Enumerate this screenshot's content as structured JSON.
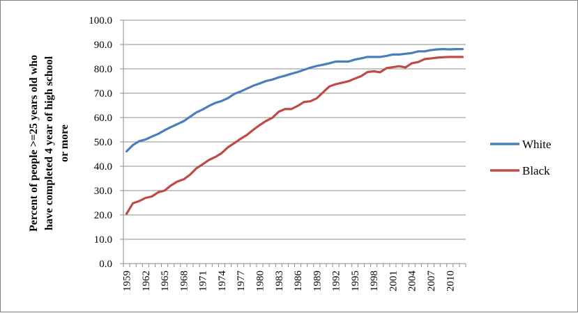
{
  "chart_data": {
    "type": "line",
    "title": "",
    "xlabel": "",
    "ylabel": "Percent of people >=25 years old who have completed 4 year of high school or more",
    "ylabel_lines": [
      "Percent of people >=25 years old who",
      "have completed 4 year of high school",
      "or more"
    ],
    "ylim": [
      0,
      100
    ],
    "yticks": [
      "0.0",
      "10.0",
      "20.0",
      "30.0",
      "40.0",
      "50.0",
      "60.0",
      "70.0",
      "80.0",
      "90.0",
      "100.0"
    ],
    "x": [
      1959,
      1960,
      1961,
      1962,
      1963,
      1964,
      1965,
      1966,
      1967,
      1968,
      1969,
      1970,
      1971,
      1972,
      1973,
      1974,
      1975,
      1976,
      1977,
      1978,
      1979,
      1980,
      1981,
      1982,
      1983,
      1984,
      1985,
      1986,
      1987,
      1988,
      1989,
      1990,
      1991,
      1992,
      1993,
      1994,
      1995,
      1996,
      1997,
      1998,
      1999,
      2000,
      2001,
      2002,
      2003,
      2004,
      2005,
      2006,
      2007,
      2008,
      2009,
      2010,
      2011,
      2012
    ],
    "xtick_labels": [
      "1959",
      "1962",
      "1965",
      "1968",
      "1971",
      "1974",
      "1977",
      "1980",
      "1983",
      "1986",
      "1989",
      "1992",
      "1995",
      "1998",
      "2001",
      "2004",
      "2007",
      "2010"
    ],
    "grid": "horizontal",
    "legend_position": "right",
    "series": [
      {
        "name": "White",
        "color": "#4a7ebb",
        "values": [
          46.1,
          48.7,
          50.3,
          51.0,
          52.2,
          53.3,
          54.8,
          56.1,
          57.3,
          58.5,
          60.3,
          62.1,
          63.3,
          64.8,
          66.0,
          66.8,
          68.0,
          69.7,
          70.7,
          71.9,
          73.1,
          74.0,
          75.0,
          75.6,
          76.5,
          77.2,
          78.0,
          78.7,
          79.6,
          80.5,
          81.2,
          81.7,
          82.3,
          83.0,
          83.0,
          83.0,
          83.8,
          84.3,
          84.9,
          84.9,
          84.9,
          85.3,
          85.9,
          85.9,
          86.2,
          86.5,
          87.2,
          87.2,
          87.7,
          88.0,
          88.1,
          88.0,
          88.1,
          88.1
        ],
        "style_note": "solid line"
      },
      {
        "name": "Black",
        "color": "#be4b48",
        "values": [
          20.5,
          24.8,
          25.7,
          27.0,
          27.6,
          29.3,
          30.0,
          32.1,
          33.7,
          34.6,
          36.5,
          39.1,
          40.8,
          42.6,
          43.8,
          45.4,
          47.8,
          49.5,
          51.3,
          52.9,
          55.0,
          56.9,
          58.6,
          59.9,
          62.4,
          63.5,
          63.5,
          64.8,
          66.4,
          66.7,
          67.9,
          70.4,
          72.8,
          73.7,
          74.3,
          74.9,
          76.0,
          77.0,
          78.7,
          79.0,
          78.6,
          80.3,
          80.7,
          81.1,
          80.6,
          82.3,
          82.8,
          84.0,
          84.3,
          84.6,
          84.8,
          84.9,
          84.9,
          84.9
        ],
        "style_note": "solid line"
      }
    ]
  }
}
